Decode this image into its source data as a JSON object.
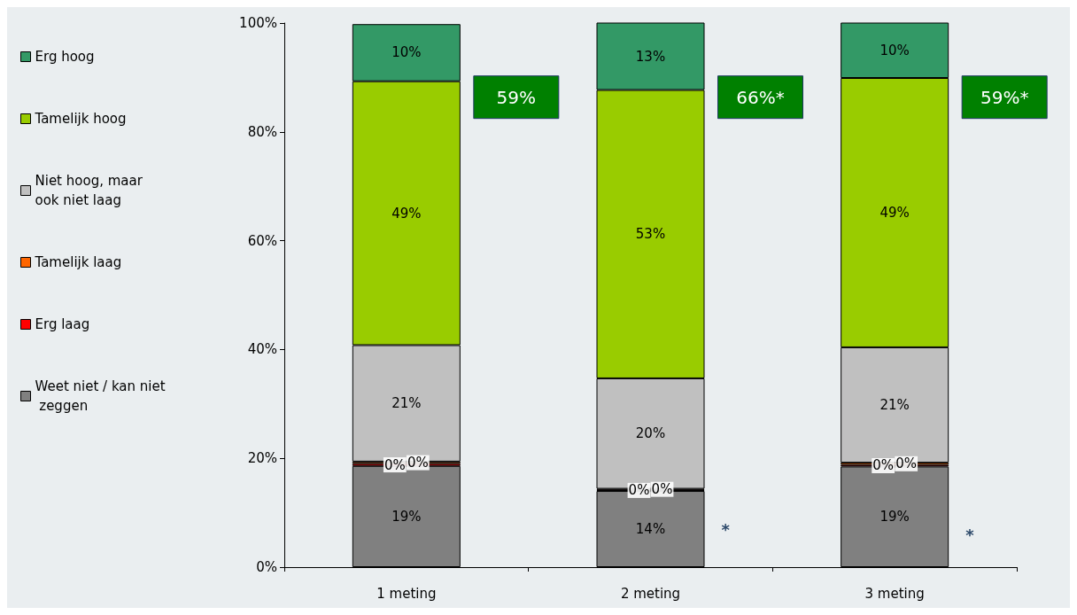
{
  "chart_data": {
    "type": "bar",
    "stacked": true,
    "categories": [
      "1 meting",
      "2 meting",
      "3 meting"
    ],
    "series": [
      {
        "name": "Weet niet / kan niet zeggen",
        "color": "#808080",
        "values": [
          18.6,
          14.0,
          18.5
        ],
        "value_labels": [
          "19%",
          "14%",
          "19%"
        ]
      },
      {
        "name": "Erg laag",
        "color": "#ff0000",
        "values": [
          0.4,
          0.2,
          0.3
        ],
        "value_labels": [
          "0%",
          "0%",
          "0%"
        ]
      },
      {
        "name": "Tamelijk laag",
        "color": "#ff6600",
        "values": [
          0.4,
          0.2,
          0.4
        ],
        "value_labels": [
          "0%",
          "0%",
          "0%"
        ]
      },
      {
        "name": "Niet hoog, maar ook niet laag",
        "color": "#c0c0c0",
        "values": [
          21.4,
          20.3,
          21.2
        ],
        "value_labels": [
          "21%",
          "20%",
          "21%"
        ]
      },
      {
        "name": "Tamelijk hoog",
        "color": "#99cc00",
        "values": [
          48.5,
          53.0,
          49.5
        ],
        "value_labels": [
          "49%",
          "53%",
          "49%"
        ]
      },
      {
        "name": "Erg hoog",
        "color": "#339966",
        "values": [
          10.5,
          12.7,
          10.2
        ],
        "value_labels": [
          "10%",
          "13%",
          "10%"
        ]
      }
    ],
    "ylim": [
      0,
      100
    ],
    "yticks": [
      {
        "value": 0,
        "label": "0%"
      },
      {
        "value": 20,
        "label": "20%"
      },
      {
        "value": 40,
        "label": "40%"
      },
      {
        "value": 60,
        "label": "60%"
      },
      {
        "value": 80,
        "label": "80%"
      },
      {
        "value": 100,
        "label": "100%"
      }
    ],
    "legend": "left",
    "annotations": [
      "59%",
      "66%*",
      "59%*",
      "*",
      "*"
    ]
  }
}
